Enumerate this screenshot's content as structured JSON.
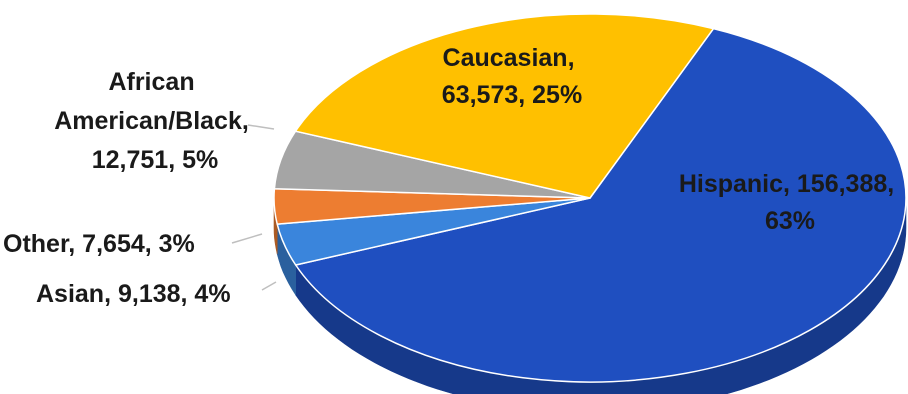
{
  "chart_data": {
    "type": "pie",
    "style": "3d",
    "title": "",
    "slices": [
      {
        "label": "Hispanic",
        "value": 156388,
        "percent": "63%",
        "color": "#1f4fc0",
        "label_lines": [
          "Hispanic, 156,388,",
          "63%"
        ]
      },
      {
        "label": "Asian",
        "value": 9138,
        "percent": "4%",
        "color": "#3a85dc",
        "label_lines": [
          "Asian, 9,138, 4%"
        ]
      },
      {
        "label": "Other",
        "value": 7654,
        "percent": "3%",
        "color": "#ed7d31",
        "label_lines": [
          "Other, 7,654, 3%"
        ]
      },
      {
        "label": "African American/Black",
        "value": 12751,
        "percent": "5%",
        "color": "#a5a5a5",
        "label_lines": [
          "African",
          "American/Black,",
          "12,751, 5%"
        ]
      },
      {
        "label": "Caucasian",
        "value": 63573,
        "percent": "25%",
        "color": "#ffc000",
        "label_lines": [
          "Caucasian,",
          "63,573, 25%"
        ]
      }
    ]
  }
}
